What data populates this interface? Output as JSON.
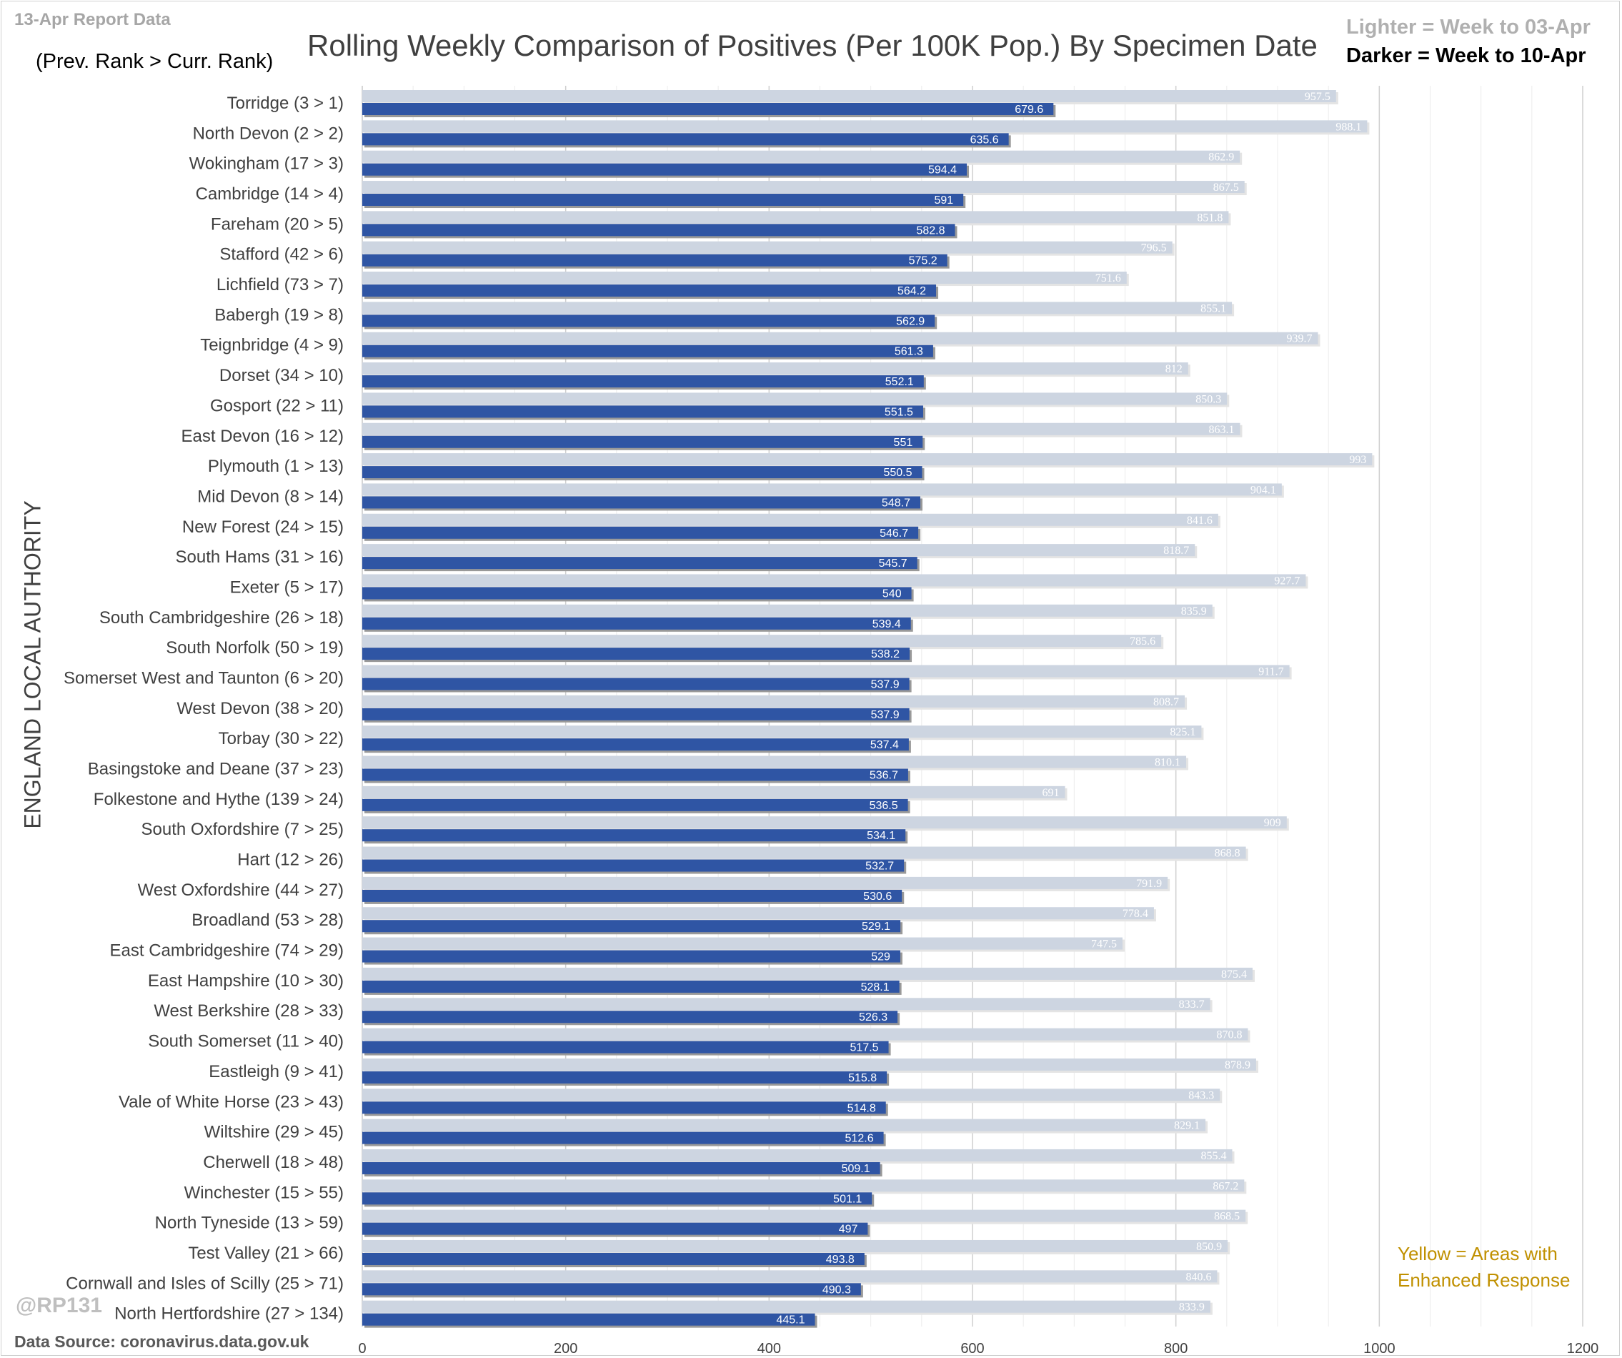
{
  "header": {
    "report_label": "13-Apr Report Data",
    "rank_note": "(Prev. Rank > Curr. Rank)",
    "title": "Rolling Weekly Comparison of Positives  (Per 100K Pop.) By Specimen Date",
    "legend_light": "Lighter =  Week to 03-Apr",
    "legend_dark": "Darker =  Week to 10-Apr"
  },
  "footer": {
    "handle": "@RP131",
    "source": "Data Source: coronavirus.data.gov.uk",
    "note": "Yellow = Areas with Enhanced Response"
  },
  "colors": {
    "previous_week": "#cdd5e1",
    "current_week": "#2f55a4",
    "note_text": "#c09000"
  },
  "chart_data": {
    "type": "bar",
    "orientation": "horizontal",
    "ylabel": "ENGLAND LOCAL AUTHORITY",
    "xlim": [
      0,
      1200
    ],
    "x_ticks": [
      0,
      200,
      400,
      600,
      800,
      1000,
      1200
    ],
    "grid": true,
    "categories": [
      "Torridge (3 > 1)",
      "North Devon (2 > 2)",
      "Wokingham (17 > 3)",
      "Cambridge (14 > 4)",
      "Fareham (20 > 5)",
      "Stafford (42 > 6)",
      "Lichfield (73 > 7)",
      "Babergh (19 > 8)",
      "Teignbridge (4 > 9)",
      "Dorset (34 > 10)",
      "Gosport (22 > 11)",
      "East Devon (16 > 12)",
      "Plymouth (1 > 13)",
      "Mid Devon (8 > 14)",
      "New Forest (24 > 15)",
      "South Hams (31 > 16)",
      "Exeter (5 > 17)",
      "South Cambridgeshire (26 > 18)",
      "South Norfolk (50 > 19)",
      "Somerset West and Taunton (6 > 20)",
      "West Devon (38 > 20)",
      "Torbay (30 > 22)",
      "Basingstoke and Deane (37 > 23)",
      "Folkestone and Hythe (139 > 24)",
      "South Oxfordshire (7 > 25)",
      "Hart (12 > 26)",
      "West Oxfordshire (44 > 27)",
      "Broadland (53 > 28)",
      "East Cambridgeshire (74 > 29)",
      "East Hampshire (10 > 30)",
      "West Berkshire (28 > 33)",
      "South Somerset (11 > 40)",
      "Eastleigh (9 > 41)",
      "Vale of White Horse (23 > 43)",
      "Wiltshire (29 > 45)",
      "Cherwell (18 > 48)",
      "Winchester (15 > 55)",
      "North Tyneside (13 > 59)",
      "Test Valley (21 > 66)",
      "Cornwall and Isles of Scilly (25 > 71)",
      "North Hertfordshire (27 > 134)"
    ],
    "series": [
      {
        "values": [
          957.5,
          988.1,
          862.9,
          867.5,
          851.8,
          796.5,
          751.6,
          855.1,
          939.7,
          812,
          850.3,
          863.1,
          993,
          904.1,
          841.6,
          818.7,
          927.7,
          835.9,
          785.6,
          911.7,
          808.7,
          825.1,
          810.1,
          691,
          909,
          868.8,
          791.9,
          778.4,
          747.5,
          875.4,
          833.7,
          870.8,
          878.9,
          843.3,
          829.1,
          855.4,
          867.2,
          868.5,
          850.9,
          840.6,
          833.9
        ]
      },
      {
        "values": [
          679.6,
          635.6,
          594.4,
          591,
          582.8,
          575.2,
          564.2,
          562.9,
          561.3,
          552.1,
          551.5,
          551,
          550.5,
          548.7,
          546.7,
          545.7,
          540,
          539.4,
          538.2,
          537.9,
          537.9,
          537.4,
          536.7,
          536.5,
          534.1,
          532.7,
          530.6,
          529.1,
          529,
          528.1,
          526.3,
          517.5,
          515.8,
          514.8,
          512.6,
          509.1,
          501.1,
          497,
          493.8,
          490.3,
          445.1
        ]
      }
    ]
  }
}
